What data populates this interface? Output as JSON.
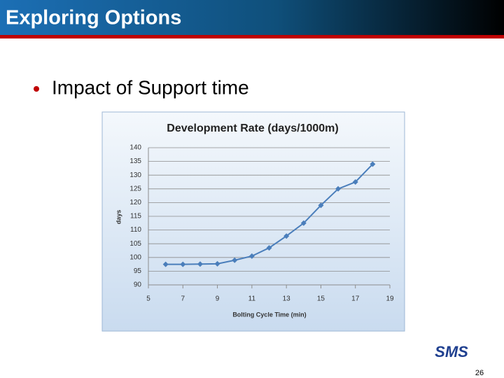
{
  "header": {
    "title": "Exploring Options"
  },
  "bullet": "Impact of Support time",
  "chart_data": {
    "type": "line",
    "title": "Development Rate (days/1000m)",
    "x_label": "Bolting Cycle Time (min)",
    "y_label": "days",
    "x": [
      6,
      7,
      8,
      9,
      10,
      11,
      12,
      13,
      14,
      15,
      16,
      17,
      18
    ],
    "values": [
      97.5,
      97.5,
      97.6,
      97.7,
      99,
      100.5,
      103.5,
      107.8,
      112.5,
      119,
      125,
      127.5,
      134
    ],
    "color": "#4a7ebb",
    "xlim": [
      5,
      19
    ],
    "xticks": [
      5,
      7,
      9,
      11,
      13,
      15,
      17,
      19
    ],
    "ylim": [
      90,
      140
    ],
    "yticks": [
      90,
      95,
      100,
      105,
      110,
      115,
      120,
      125,
      130,
      135,
      140
    ],
    "grid": true
  },
  "logo": "SMS",
  "page_number": "26"
}
